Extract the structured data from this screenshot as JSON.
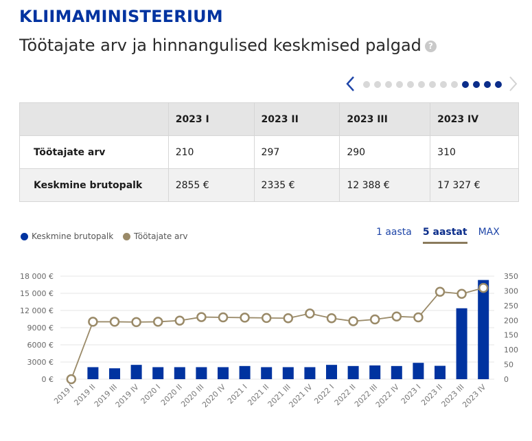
{
  "header": {
    "ministry": "KLIIMAMINISTEERIUM",
    "title": "Töötajate arv ja hinnangulised keskmised palgad",
    "help_symbol": "?"
  },
  "pager": {
    "dot_count": 13,
    "active_from": 9
  },
  "table": {
    "columns": [
      "",
      "2023 I",
      "2023 II",
      "2023 III",
      "2023 IV"
    ],
    "rows": [
      {
        "label": "Töötajate arv",
        "values": [
          "210",
          "297",
          "290",
          "310"
        ]
      },
      {
        "label": "Keskmine brutopalk",
        "values": [
          "2855 €",
          "2335 €",
          "12 388 €",
          "17 327 €"
        ]
      }
    ]
  },
  "legend": {
    "salary": "Keskmine brutopalk",
    "employees": "Töötajate arv"
  },
  "ranges": [
    "1 aasta",
    "5 aastat",
    "MAX"
  ],
  "active_range": "5 aastat",
  "colors": {
    "brand": "#0033a0",
    "bar": "#0033a0",
    "line": "#9a8a68",
    "grid": "#e6e6e6"
  },
  "chart_data": {
    "type": "bar",
    "categories": [
      "2019 I",
      "2019 II",
      "2019 III",
      "2019 IV",
      "2020 I",
      "2020 II",
      "2020 III",
      "2020 IV",
      "2021 I",
      "2021 II",
      "2021 III",
      "2021 IV",
      "2022 I",
      "2022 II",
      "2022 III",
      "2022 IV",
      "2023 I",
      "2023 II",
      "2023 III",
      "2023 IV"
    ],
    "series": [
      {
        "name": "Keskmine brutopalk",
        "type": "bar",
        "axis": "left",
        "values": [
          0,
          2100,
          1900,
          2500,
          2100,
          2100,
          2100,
          2100,
          2300,
          2100,
          2100,
          2100,
          2500,
          2300,
          2400,
          2300,
          2855,
          2335,
          12388,
          17327
        ]
      },
      {
        "name": "Töötajate arv",
        "type": "line",
        "axis": "right",
        "values": [
          0,
          195,
          195,
          194,
          195,
          199,
          211,
          210,
          209,
          208,
          207,
          223,
          207,
          197,
          203,
          213,
          210,
          297,
          290,
          310
        ]
      }
    ],
    "left_axis": {
      "ticks": [
        "0 €",
        "3000 €",
        "6000 €",
        "9000 €",
        "12 000 €",
        "15 000 €",
        "18 000 €"
      ],
      "range": [
        0,
        18000
      ]
    },
    "right_axis": {
      "ticks": [
        "0",
        "50",
        "100",
        "150",
        "200",
        "250",
        "300",
        "350"
      ],
      "range": [
        0,
        350
      ]
    },
    "grid": true
  }
}
